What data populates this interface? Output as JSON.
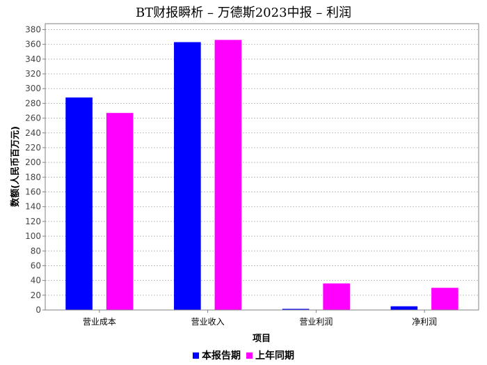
{
  "chart_data": {
    "type": "bar",
    "title": "BT财报瞬析 – 万德斯2023中报 – 利润",
    "xlabel": "项目",
    "ylabel": "数额(人民币百万元)",
    "categories": [
      "营业成本",
      "营业收入",
      "营业利润",
      "净利润"
    ],
    "series": [
      {
        "name": "本报告期",
        "color": "#0000ff",
        "values": [
          288,
          363,
          1.5,
          5
        ]
      },
      {
        "name": "上年同期",
        "color": "#ff00ff",
        "values": [
          267,
          366,
          36,
          30
        ]
      }
    ],
    "ylim": [
      0,
      388
    ],
    "yticks": [
      0,
      20,
      40,
      60,
      80,
      100,
      120,
      140,
      160,
      180,
      200,
      220,
      240,
      260,
      280,
      300,
      320,
      340,
      360,
      380
    ],
    "grid": true,
    "legend_position": "bottom"
  }
}
